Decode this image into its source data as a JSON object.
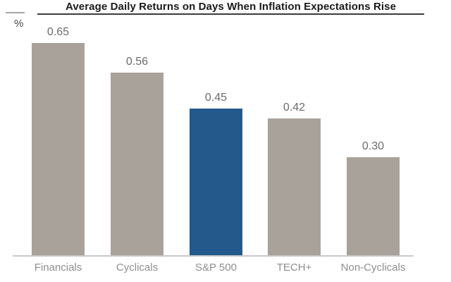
{
  "chart_data": {
    "type": "bar",
    "title": "Average Daily Returns on Days When Inflation Expectations Rise",
    "ylabel": "%",
    "xlabel": "",
    "categories": [
      "Financials",
      "Cyclicals",
      "S&P 500",
      "TECH+",
      "Non-Cyclicals"
    ],
    "values": [
      0.65,
      0.56,
      0.45,
      0.42,
      0.3
    ],
    "value_labels": [
      "0.65",
      "0.56",
      "0.45",
      "0.42",
      "0.30"
    ],
    "ylim": [
      0,
      0.72
    ],
    "grid": false,
    "legend": null,
    "highlight_index": 2,
    "bar_colors": [
      "#a9a29b",
      "#a9a29b",
      "#23598b",
      "#a9a29b",
      "#a9a29b"
    ]
  },
  "colors": {
    "bar_default": "#a9a29b",
    "bar_highlight": "#23598b",
    "axis_line": "#c9c9c9",
    "title_text": "#1a1a1a",
    "title_underline": "#3c3c3c",
    "value_label": "#6b6b6b",
    "category_label": "#8f8f8f",
    "background": "#ffffff"
  }
}
